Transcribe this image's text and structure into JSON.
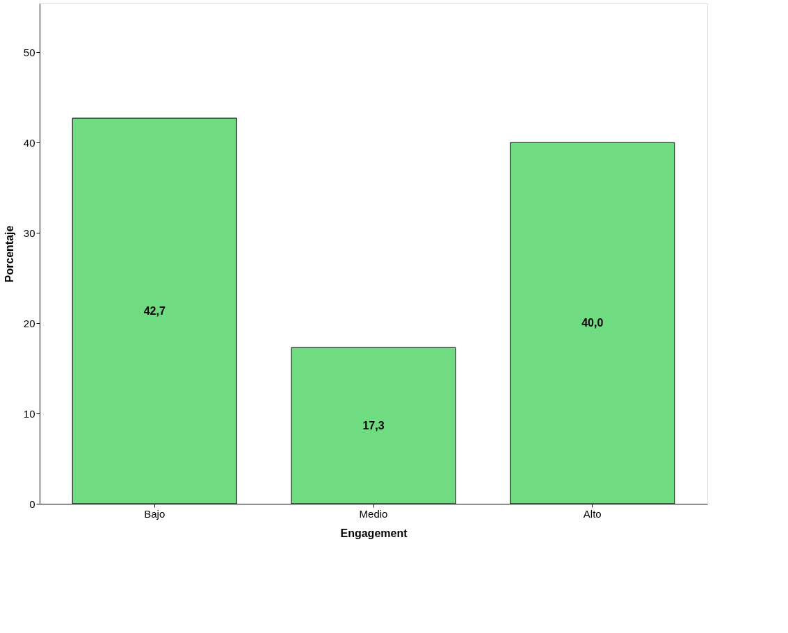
{
  "chart_data": {
    "type": "bar",
    "xlabel": "Engagement",
    "ylabel": "Porcentaje",
    "categories": [
      "Bajo",
      "Medio",
      "Alto"
    ],
    "values": [
      42.7,
      17.3,
      40.0
    ],
    "value_labels": [
      "42,7",
      "17,3",
      "40,0"
    ],
    "color": "#6fdc82",
    "ylim": [
      0,
      55.4
    ],
    "yticks": [
      0,
      10,
      20,
      30,
      40,
      50
    ],
    "grid": false
  }
}
